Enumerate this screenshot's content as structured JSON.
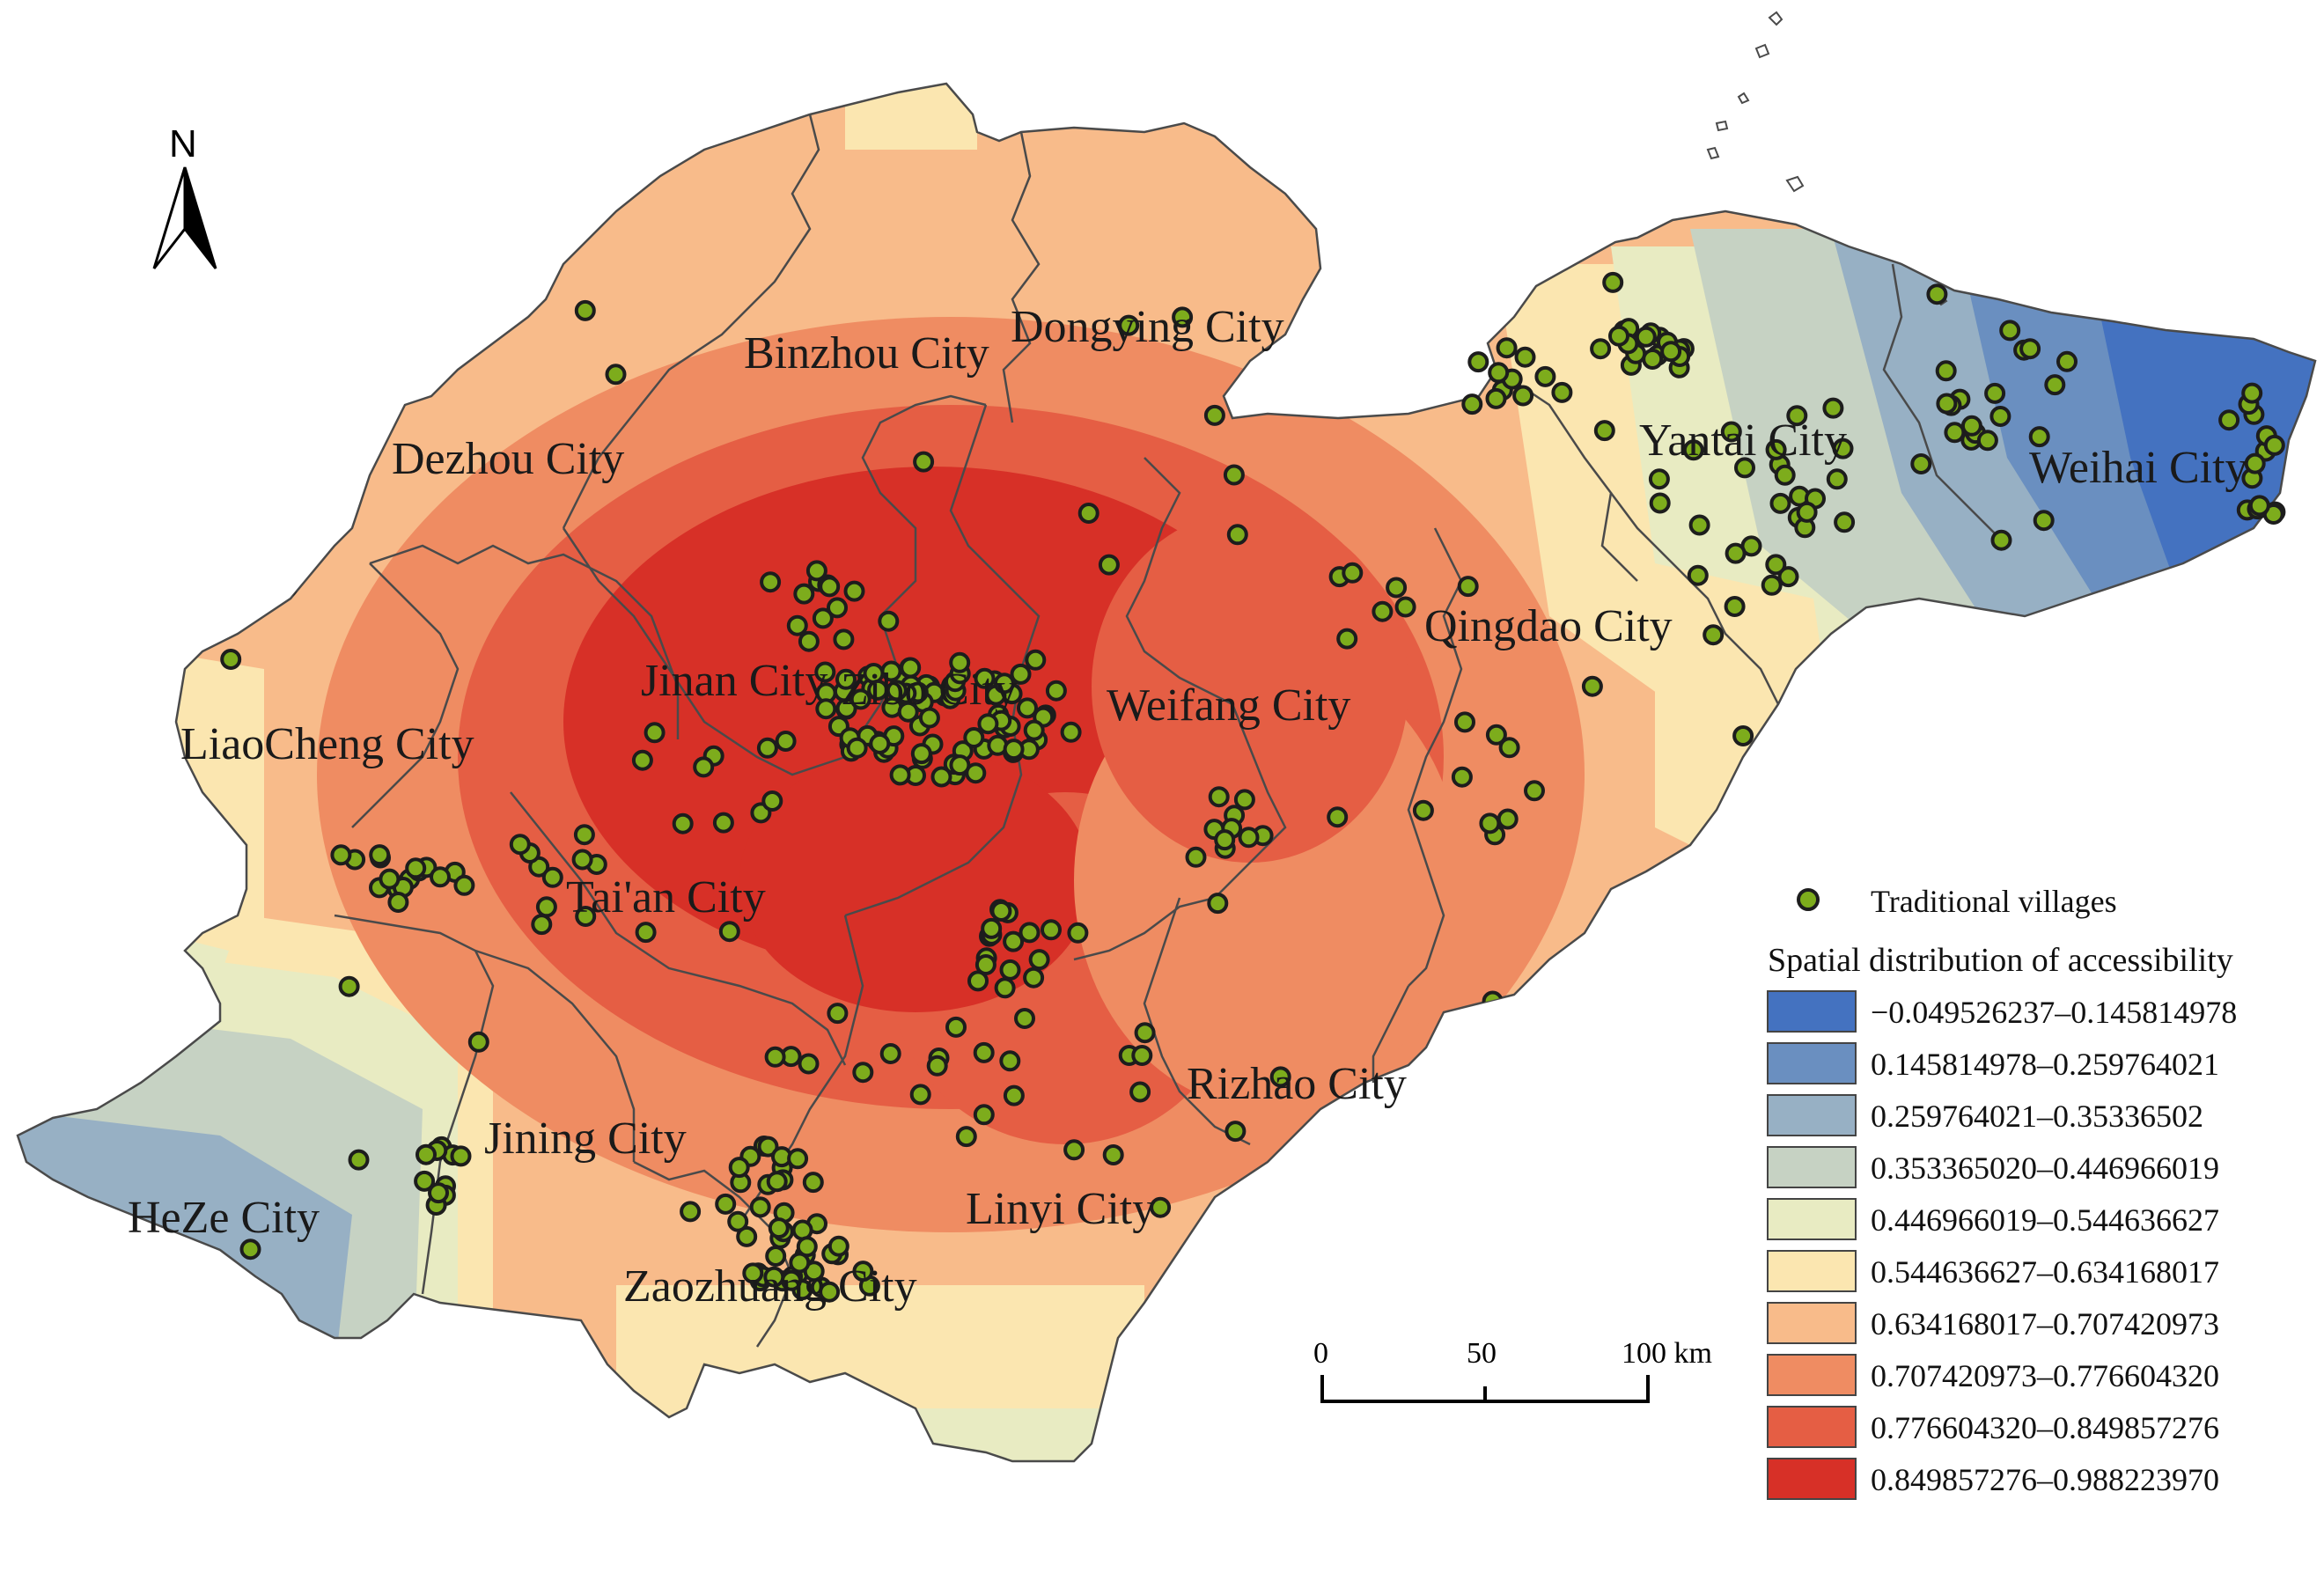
{
  "colors": {
    "class_fills": [
      "#4472c0",
      "#6a8fc0",
      "#97b0c4",
      "#c6d2c3",
      "#e8ebc2",
      "#fbe6b0",
      "#f8bb8a",
      "#ef8c62",
      "#e55e44",
      "#d73027"
    ],
    "village_fill": "#7dac1c",
    "village_stroke": "#1d1d1d",
    "boundary": "#4a4a4a"
  },
  "north_arrow": {
    "label": "N",
    "icon": "north-arrow-icon"
  },
  "cities": [
    {
      "id": "binzhou",
      "label": "Binzhou City"
    },
    {
      "id": "dongying",
      "label": "Dongying City"
    },
    {
      "id": "dezhou",
      "label": "Dezhou City"
    },
    {
      "id": "yantai",
      "label": "Yantai City"
    },
    {
      "id": "weihai",
      "label": "Weihai City"
    },
    {
      "id": "qingdao",
      "label": "Qingdao City"
    },
    {
      "id": "jinan",
      "label": "Jinan City"
    },
    {
      "id": "zibo",
      "label": "Zibo City"
    },
    {
      "id": "weifang",
      "label": "Weifang City"
    },
    {
      "id": "liaocheng",
      "label": "LiaoCheng City"
    },
    {
      "id": "taian",
      "label": "Tai'an City"
    },
    {
      "id": "rizhao",
      "label": "Rizhao City"
    },
    {
      "id": "jining",
      "label": "Jining City"
    },
    {
      "id": "linyi",
      "label": "Linyi City"
    },
    {
      "id": "heze",
      "label": "HeZe City"
    },
    {
      "id": "zaozhuang",
      "label": "Zaozhuang City"
    }
  ],
  "scale_bar": {
    "ticks": [
      "0",
      "50",
      "100 km"
    ]
  },
  "legend": {
    "points_label": "Traditional villages",
    "title": "Spatial distribution of accessibility",
    "classes": [
      "−0.049526237–0.145814978",
      "0.145814978–0.259764021",
      "0.259764021–0.35336502",
      "0.353365020–0.446966019",
      "0.446966019–0.544636627",
      "0.544636627–0.634168017",
      "0.634168017–0.707420973",
      "0.707420973–0.776604320",
      "0.776604320–0.849857276",
      "0.849857276–0.988223970"
    ]
  }
}
